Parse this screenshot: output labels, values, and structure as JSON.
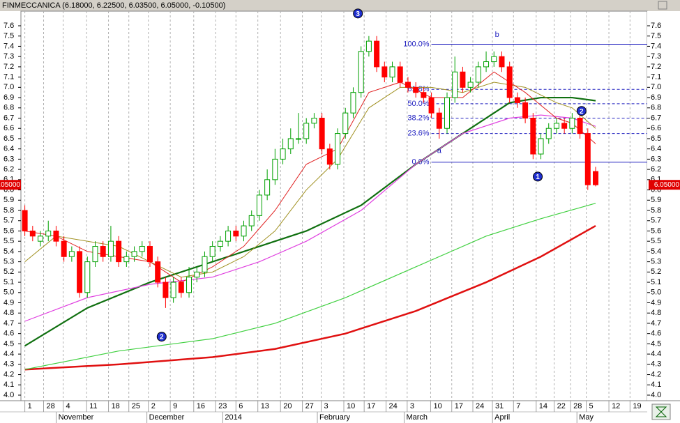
{
  "chart_data": {
    "type": "candlestick",
    "title": "FINMECCANICA (6.18000, 6.22500, 6.03500, 6.05000, -0.10500)",
    "open": [
      5.8,
      5.6,
      5.5,
      5.55,
      5.6,
      5.5,
      5.35,
      5.4,
      5.0,
      5.3,
      5.45,
      5.35,
      5.5,
      5.3,
      5.35,
      5.4,
      5.45,
      5.3,
      5.1,
      4.95,
      5.1,
      5.0,
      5.15,
      5.2,
      5.35,
      5.45,
      5.5,
      5.6,
      5.55,
      5.65,
      5.75,
      5.95,
      6.1,
      6.3,
      6.4,
      6.5,
      6.5,
      6.65,
      6.7,
      6.4,
      6.25,
      6.55,
      6.75,
      6.95,
      7.35,
      7.45,
      7.2,
      7.1,
      7.2,
      7.05,
      7.0,
      6.95,
      6.9,
      6.75,
      6.6,
      6.9,
      7.15,
      7.0,
      7.05,
      7.2,
      7.25,
      7.3,
      7.2,
      6.9,
      6.85,
      6.7,
      6.35,
      6.5,
      6.6,
      6.65,
      6.6,
      6.7,
      6.55,
      6.18
    ],
    "high": [
      5.85,
      5.65,
      5.6,
      5.7,
      5.65,
      5.55,
      5.45,
      5.45,
      5.35,
      5.5,
      5.5,
      5.65,
      5.55,
      5.4,
      5.45,
      5.5,
      5.5,
      5.35,
      5.15,
      5.15,
      5.15,
      5.25,
      5.25,
      5.4,
      5.5,
      5.55,
      5.65,
      5.65,
      5.7,
      5.8,
      6.0,
      6.2,
      6.4,
      6.5,
      6.6,
      6.75,
      6.7,
      6.75,
      6.75,
      6.45,
      6.6,
      6.8,
      7.0,
      7.4,
      7.5,
      7.5,
      7.25,
      7.25,
      7.25,
      7.1,
      7.05,
      7.0,
      6.95,
      6.8,
      6.95,
      7.3,
      7.2,
      7.1,
      7.25,
      7.35,
      7.35,
      7.35,
      7.25,
      6.95,
      6.9,
      6.75,
      6.55,
      6.65,
      6.7,
      6.7,
      6.75,
      6.75,
      6.6,
      6.225
    ],
    "low": [
      5.55,
      5.5,
      5.45,
      5.5,
      5.45,
      5.3,
      5.3,
      4.95,
      4.95,
      5.25,
      5.3,
      5.3,
      5.25,
      5.25,
      5.3,
      5.35,
      5.25,
      5.05,
      4.85,
      4.9,
      4.95,
      4.95,
      5.1,
      5.15,
      5.3,
      5.4,
      5.45,
      5.5,
      5.5,
      5.6,
      5.7,
      5.9,
      6.05,
      6.25,
      6.35,
      6.45,
      6.45,
      6.6,
      6.35,
      6.2,
      6.2,
      6.5,
      6.7,
      6.9,
      7.3,
      7.15,
      7.05,
      7.05,
      7.0,
      6.95,
      6.9,
      6.85,
      6.7,
      6.5,
      6.55,
      6.85,
      6.95,
      6.95,
      7.0,
      7.15,
      7.2,
      7.15,
      6.85,
      6.8,
      6.65,
      6.3,
      6.3,
      6.45,
      6.55,
      6.55,
      6.55,
      6.5,
      6.0,
      6.035
    ],
    "close": [
      5.6,
      5.55,
      5.55,
      5.6,
      5.5,
      5.35,
      5.4,
      5.0,
      5.3,
      5.45,
      5.35,
      5.5,
      5.3,
      5.35,
      5.4,
      5.45,
      5.3,
      5.1,
      4.95,
      5.1,
      5.0,
      5.15,
      5.2,
      5.35,
      5.45,
      5.5,
      5.6,
      5.55,
      5.65,
      5.75,
      5.95,
      6.1,
      6.3,
      6.4,
      6.5,
      6.5,
      6.65,
      6.7,
      6.4,
      6.25,
      6.55,
      6.75,
      6.95,
      7.35,
      7.45,
      7.2,
      7.1,
      7.2,
      7.05,
      7.0,
      6.95,
      6.9,
      6.75,
      6.6,
      6.9,
      7.15,
      7.0,
      7.05,
      7.2,
      7.25,
      7.3,
      7.2,
      6.9,
      6.85,
      6.7,
      6.35,
      6.5,
      6.6,
      6.65,
      6.6,
      6.7,
      6.55,
      6.05,
      6.05
    ],
    "up_color": "#00a000",
    "down_color": "#ff0000",
    "lines": [
      {
        "color": "#e01010",
        "width": 2.5,
        "x": [
          0,
          12,
          24,
          32,
          41,
          50,
          59,
          66,
          73
        ],
        "values": [
          4.25,
          4.3,
          4.37,
          4.45,
          4.6,
          4.82,
          5.1,
          5.35,
          5.65
        ]
      },
      {
        "color": "#40d040",
        "width": 1.2,
        "x": [
          0,
          12,
          24,
          32,
          41,
          50,
          59,
          66,
          73
        ],
        "values": [
          4.25,
          4.43,
          4.55,
          4.7,
          4.95,
          5.25,
          5.55,
          5.72,
          5.87
        ]
      },
      {
        "color": "#107010",
        "width": 2.2,
        "x": [
          0,
          8,
          16,
          24,
          30,
          36,
          43,
          50,
          56,
          62,
          66,
          70,
          73
        ],
        "values": [
          4.48,
          4.85,
          5.1,
          5.3,
          5.45,
          5.6,
          5.85,
          6.25,
          6.55,
          6.85,
          6.9,
          6.9,
          6.87
        ]
      },
      {
        "color": "#e040e0",
        "width": 1.2,
        "x": [
          0,
          8,
          16,
          24,
          30,
          36,
          43,
          50,
          56,
          62,
          66,
          70,
          73
        ],
        "values": [
          4.72,
          4.95,
          5.08,
          5.15,
          5.3,
          5.5,
          5.8,
          6.25,
          6.55,
          6.7,
          6.73,
          6.7,
          6.62
        ]
      },
      {
        "color": "#a09020",
        "width": 1,
        "x": [
          0,
          4,
          8,
          12,
          16,
          20,
          24,
          28,
          32,
          36,
          40,
          44,
          48,
          52,
          56,
          60,
          64,
          68,
          70,
          73
        ],
        "values": [
          5.3,
          5.55,
          5.5,
          5.45,
          5.3,
          5.15,
          5.2,
          5.35,
          5.6,
          6.0,
          6.3,
          6.8,
          7.0,
          7.0,
          6.95,
          7.05,
          7.0,
          6.85,
          6.8,
          6.6
        ]
      },
      {
        "color": "#e02020",
        "width": 1,
        "x": [
          0,
          4,
          8,
          12,
          16,
          20,
          24,
          28,
          32,
          36,
          40,
          44,
          48,
          52,
          56,
          60,
          64,
          68,
          70,
          73
        ],
        "values": [
          5.6,
          5.55,
          5.4,
          5.35,
          5.3,
          5.1,
          5.25,
          5.45,
          5.8,
          6.25,
          6.4,
          6.95,
          7.05,
          6.9,
          6.9,
          7.15,
          6.95,
          6.7,
          6.65,
          6.45
        ]
      }
    ],
    "fib_start": 52,
    "fib": [
      {
        "label": "100.0%",
        "value": 7.42,
        "dashed": false
      },
      {
        "label": "61.8%",
        "value": 6.98,
        "dashed": true
      },
      {
        "label": "50.0%",
        "value": 6.84,
        "dashed": true
      },
      {
        "label": "38.2%",
        "value": 6.7,
        "dashed": true
      },
      {
        "label": "23.6%",
        "value": 6.55,
        "dashed": true
      },
      {
        "label": "0.0%",
        "value": 6.27,
        "dashed": false
      }
    ],
    "waves": [
      {
        "label": "3",
        "x": 42.6,
        "value": 7.72
      },
      {
        "label": "2",
        "x": 17.5,
        "value": 4.57
      },
      {
        "label": "1",
        "x": 65.6,
        "value": 6.13
      },
      {
        "label": "2",
        "x": 71.2,
        "value": 6.77
      }
    ],
    "notes": [
      {
        "label": "a",
        "x": 53,
        "value": 6.38
      },
      {
        "label": "b",
        "x": 60.4,
        "value": 7.51
      }
    ],
    "last_price": {
      "value": 6.05,
      "label": "6.05000"
    },
    "xlim": [
      -0.5,
      79.6
    ],
    "ylim": [
      4.0,
      7.6
    ],
    "yticks": [
      {
        "value": 4,
        "label": "4.0"
      },
      4.1,
      4.2,
      4.3,
      4.4,
      4.5,
      4.6,
      4.7,
      4.8,
      4.9,
      {
        "value": 5,
        "label": "5.0"
      },
      5.1,
      5.2,
      5.3,
      5.4,
      5.5,
      5.6,
      5.7,
      5.8,
      5.9,
      {
        "value": 6,
        "label": "6.0"
      },
      6.1,
      6.2,
      6.3,
      6.4,
      6.5,
      6.6,
      6.7,
      6.8,
      6.9,
      {
        "value": 7,
        "label": "7.0"
      },
      7.1,
      7.2,
      7.3,
      7.4,
      7.5,
      7.6
    ],
    "xlabels": [
      {
        "label": "1",
        "index": 0
      },
      {
        "label": "28",
        "index": 2.4
      },
      {
        "label": "4",
        "index": 4.9
      },
      {
        "label": "11",
        "index": 7.9
      },
      {
        "label": "18",
        "index": 10.7
      },
      {
        "label": "25",
        "index": 13.3
      },
      {
        "label": "2",
        "index": 15.8
      },
      {
        "label": "9",
        "index": 18.6
      },
      {
        "label": "16",
        "index": 21.6
      },
      {
        "label": "23",
        "index": 24.4
      },
      {
        "label": "6",
        "index": 27
      },
      {
        "label": "13",
        "index": 29.8
      },
      {
        "label": "20",
        "index": 32.7
      },
      {
        "label": "27",
        "index": 35.5
      },
      {
        "label": "3",
        "index": 37.9
      },
      {
        "label": "10",
        "index": 40.8
      },
      {
        "label": "17",
        "index": 43.4
      },
      {
        "label": "24",
        "index": 46.2
      },
      {
        "label": "3",
        "index": 48.9
      },
      {
        "label": "10",
        "index": 51.9
      },
      {
        "label": "17",
        "index": 54.6
      },
      {
        "label": "24",
        "index": 57.3
      },
      {
        "label": "31",
        "index": 59.8
      },
      {
        "label": "7",
        "index": 62.5
      },
      {
        "label": "14",
        "index": 65.4
      },
      {
        "label": "22",
        "index": 67.7
      },
      {
        "label": "28",
        "index": 69.8
      },
      {
        "label": "5",
        "index": 71.8
      },
      {
        "label": "12",
        "index": 74.7
      },
      {
        "label": "19",
        "index": 77.4
      }
    ],
    "months": [
      {
        "label": "November",
        "index": 4.1
      },
      {
        "label": "December",
        "index": 15.7
      },
      {
        "label": "2014",
        "index": 25.4
      },
      {
        "label": "February",
        "index": 37.5
      },
      {
        "label": "March",
        "index": 48.6
      },
      {
        "label": "April",
        "index": 59.9
      },
      {
        "label": "May",
        "index": 70.7
      }
    ],
    "grid": true
  }
}
